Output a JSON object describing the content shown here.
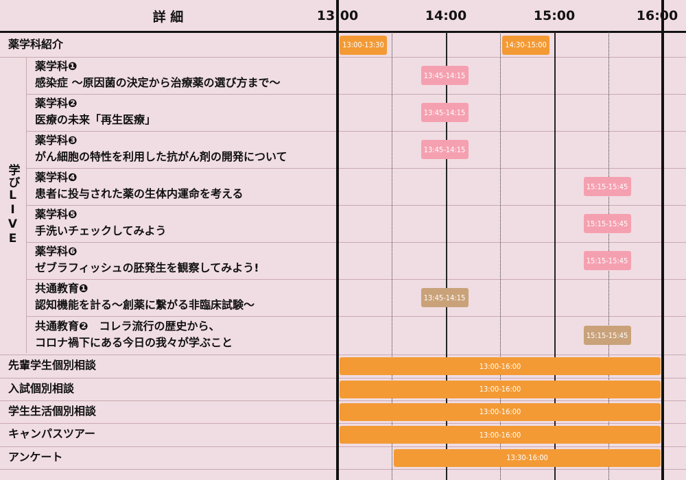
{
  "header": {
    "details": "詳 細",
    "times": [
      "13:00",
      "14:00",
      "15:00",
      "16:00"
    ]
  },
  "sidebar_group": "学びLIVE",
  "rows": [
    {
      "lines": [
        "薬学科紹介"
      ]
    },
    {
      "lines": [
        "薬学科❶",
        "感染症 〜原因菌の決定から治療薬の選び方まで〜"
      ]
    },
    {
      "lines": [
        "薬学科❷",
        "医療の未来「再生医療」"
      ]
    },
    {
      "lines": [
        "薬学科❸",
        "がん細胞の特性を利用した抗がん剤の開発について"
      ]
    },
    {
      "lines": [
        "薬学科❹",
        "患者に投与された薬の生体内運命を考える"
      ]
    },
    {
      "lines": [
        "薬学科❺",
        "手洗いチェックしてみよう"
      ]
    },
    {
      "lines": [
        "薬学科❻",
        "ゼブラフィッシュの胚発生を観察してみよう!"
      ]
    },
    {
      "lines": [
        "共通教育❶",
        "認知機能を計る〜創薬に繋がる非臨床試験〜"
      ]
    },
    {
      "lines": [
        "共通教育❷　コレラ流行の歴史から、",
        "コロナ禍下にある今日の我々が学ぶこと"
      ]
    },
    {
      "lines": [
        "先輩学生個別相談"
      ]
    },
    {
      "lines": [
        "入試個別相談"
      ]
    },
    {
      "lines": [
        "学生生活個別相談"
      ]
    },
    {
      "lines": [
        "キャンパスツアー"
      ]
    },
    {
      "lines": [
        "アンケート"
      ]
    }
  ],
  "sessions": [
    {
      "row": 0,
      "start": "13:00",
      "end": "13:30",
      "label": "13:00-13:30",
      "color": "orange"
    },
    {
      "row": 0,
      "start": "14:30",
      "end": "15:00",
      "label": "14:30-15:00",
      "color": "orange"
    },
    {
      "row": 1,
      "start": "13:45",
      "end": "14:15",
      "label": "13:45-14:15",
      "color": "pink"
    },
    {
      "row": 2,
      "start": "13:45",
      "end": "14:15",
      "label": "13:45-14:15",
      "color": "pink"
    },
    {
      "row": 3,
      "start": "13:45",
      "end": "14:15",
      "label": "13:45-14:15",
      "color": "pink"
    },
    {
      "row": 4,
      "start": "15:15",
      "end": "15:45",
      "label": "15:15-15:45",
      "color": "pink"
    },
    {
      "row": 5,
      "start": "15:15",
      "end": "15:45",
      "label": "15:15-15:45",
      "color": "pink"
    },
    {
      "row": 6,
      "start": "15:15",
      "end": "15:45",
      "label": "15:15-15:45",
      "color": "pink"
    },
    {
      "row": 7,
      "start": "13:45",
      "end": "14:15",
      "label": "13:45-14:15",
      "color": "tan"
    },
    {
      "row": 8,
      "start": "15:15",
      "end": "15:45",
      "label": "15:15-15:45",
      "color": "tan"
    },
    {
      "row": 9,
      "start": "13:00",
      "end": "16:00",
      "label": "13:00-16:00",
      "color": "orange"
    },
    {
      "row": 10,
      "start": "13:00",
      "end": "16:00",
      "label": "13:00-16:00",
      "color": "orange"
    },
    {
      "row": 11,
      "start": "13:00",
      "end": "16:00",
      "label": "13:00-16:00",
      "color": "orange"
    },
    {
      "row": 12,
      "start": "13:00",
      "end": "16:00",
      "label": "13:00-16:00",
      "color": "orange"
    },
    {
      "row": 13,
      "start": "13:30",
      "end": "16:00",
      "label": "13:30-16:00",
      "color": "orange"
    }
  ],
  "colors": {
    "background": "#f0dde3",
    "orange": "#f39a35",
    "pink": "#f5a0b0",
    "tan": "#c9a27a"
  }
}
